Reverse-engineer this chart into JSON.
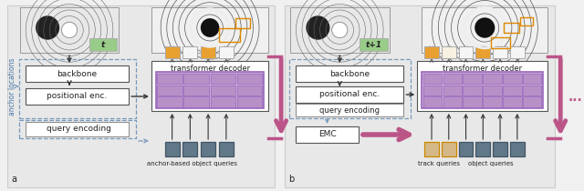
{
  "bg_color": "#f0f0f0",
  "panel_bg": "#e8e8e8",
  "box_fill": "#ffffff",
  "box_edge": "#555555",
  "dashed_box_color": "#7799bb",
  "purple_fill": "#c8a8d8",
  "purple_edge": "#9966bb",
  "purple_cell_fill": "#b890c8",
  "dark_query_color": "#607888",
  "orange_query_fill": "#e8a030",
  "orange_query_edge": "#cc8800",
  "tan_query_fill": "#d4b888",
  "light_out_fill": "#f8f0e0",
  "white_out_fill": "#f5f5f5",
  "green_label_fill": "#99cc88",
  "pink_arrow_color": "#bb5588",
  "gray_arrow_color": "#888888",
  "black_arrow_color": "#333333",
  "text_color": "#222222",
  "label_a": "a",
  "label_b": "b",
  "label_t": "t",
  "label_t1": "t+1",
  "label_backbone": "backbone",
  "label_posenc": "positional enc.",
  "label_transformer": "transformer decoder",
  "label_queryenc": "query encoding",
  "label_anchorqueries": "anchor-based object queries",
  "label_emc": "EMC",
  "label_trackqueries": "track queries",
  "label_objectqueries": "object queries",
  "label_anchorlocations": "anchor locations",
  "label_dots": "..."
}
